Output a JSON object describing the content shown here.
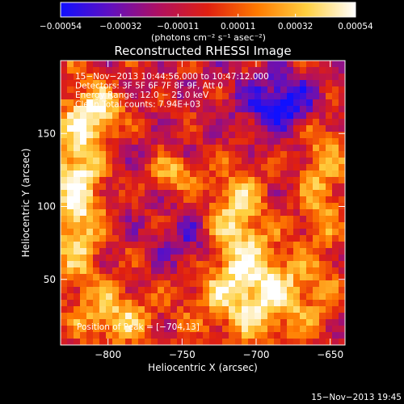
{
  "chart_data": {
    "type": "heatmap",
    "title": "Reconstructed RHESSI Image",
    "xlabel": "Heliocentric X (arcsec)",
    "ylabel": "Heliocentric Y (arcsec)",
    "xlim": [
      -832,
      -640
    ],
    "ylim": [
      5,
      200
    ],
    "x_ticks": [
      -800,
      -750,
      -700,
      -650
    ],
    "x_tick_labels": [
      "−800",
      "−750",
      "−700",
      "−650"
    ],
    "y_ticks": [
      50,
      100,
      150
    ],
    "y_tick_labels": [
      "50",
      "100",
      "150"
    ],
    "colorbar": {
      "min": -0.00054,
      "max": 0.00054,
      "ticks": [
        -0.00054,
        -0.00032,
        -0.00011,
        0.00011,
        0.00032,
        0.00054
      ],
      "tick_labels": [
        "−0.00054",
        "−0.00032",
        "−0.00011",
        "0.00011",
        "0.00032",
        "0.00054"
      ],
      "unit_label": "(photons cm⁻² s⁻¹ asec⁻²)",
      "colors": [
        "#1010ff",
        "#6010c0",
        "#b01060",
        "#e02010",
        "#ff7a00",
        "#ffd040",
        "#ffffff"
      ]
    },
    "annotations": [
      "15−Nov−2013 10:44:56.000 to 10:47:12.000",
      "Detectors: 3F 5F 6F 7F 8F 9F, Att 0",
      "Energy Range: 12.0 − 25.0 keV",
      "Clean    Total counts: 7.94E+03"
    ],
    "peak_label": "Position of Peak = [−704,13]",
    "peak": [
      -704,
      13
    ],
    "grid": false,
    "legend": "none"
  },
  "footer": {
    "timestamp": "15−Nov−2013 19:45"
  }
}
